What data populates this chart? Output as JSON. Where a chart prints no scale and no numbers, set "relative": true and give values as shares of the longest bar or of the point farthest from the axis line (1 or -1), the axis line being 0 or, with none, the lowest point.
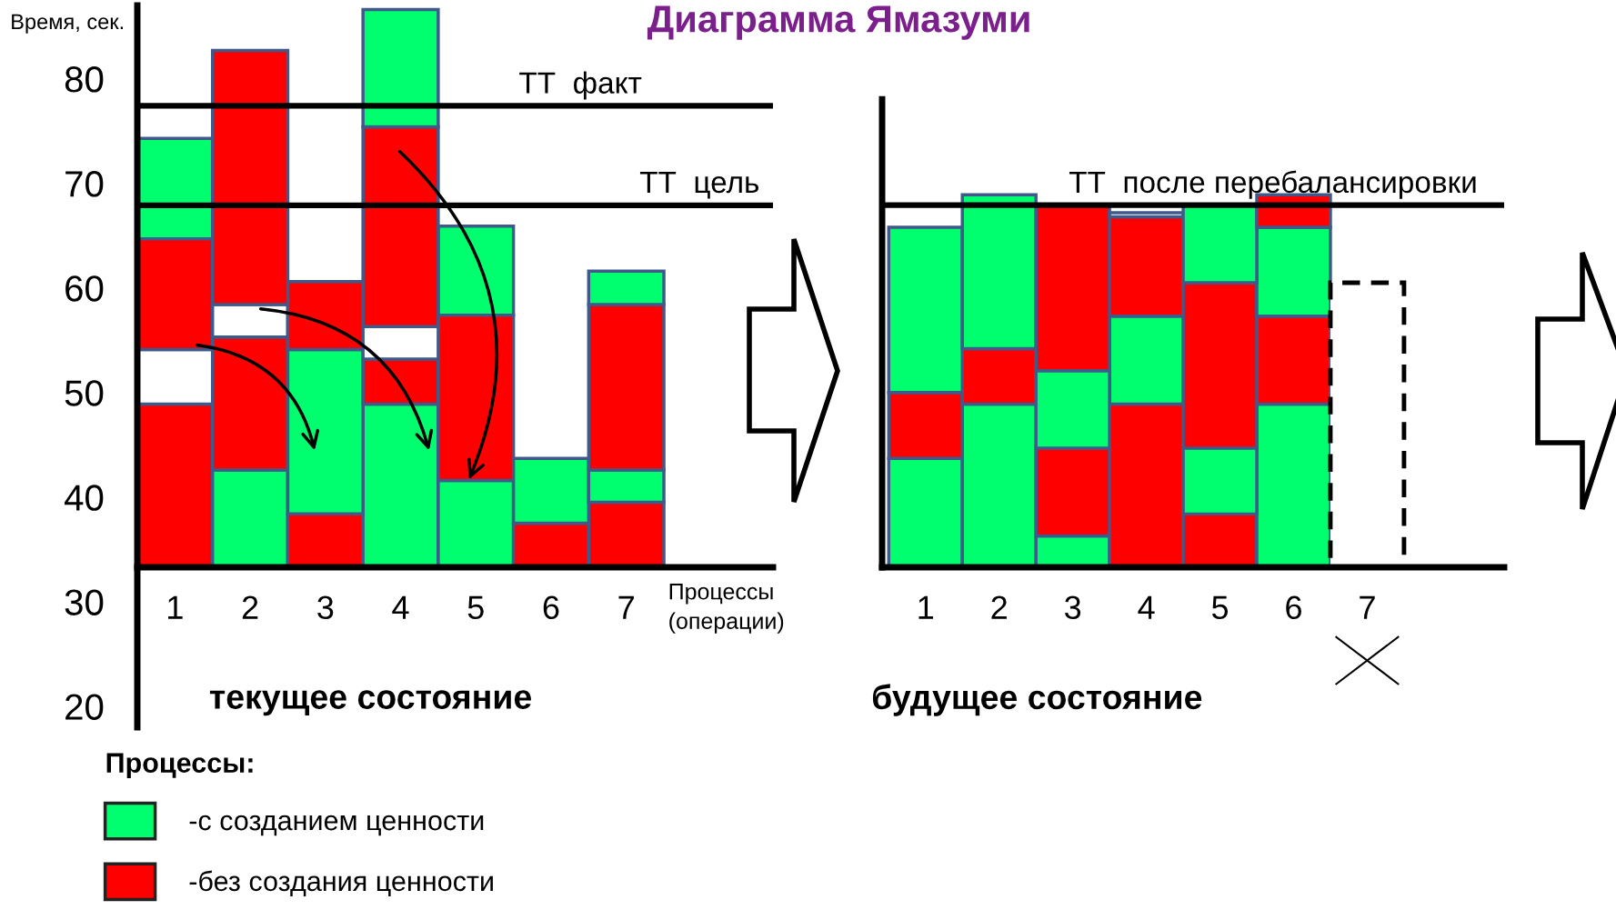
{
  "chart_data": [
    {
      "type": "bar",
      "title": "Диаграмма Ямазуми",
      "ylabel": "Время, сек.",
      "xlabel": "текущее состояние",
      "legend": "bottom left",
      "legend_title": "Процессы:",
      "categories": [
        "1",
        "2",
        "3",
        "4",
        "5",
        "6",
        "7"
      ],
      "series": [
        {
          "name": "-с созданием ценности",
          "color": "#00ff6e",
          "values": [
            null,
            null,
            null,
            null,
            null,
            null,
            null
          ]
        },
        {
          "name": "-без создания ценности",
          "color": "#ff0000",
          "values": [
            null,
            null,
            null,
            null,
            null,
            null,
            null
          ]
        },
        {
          "color": "#ffffff",
          "values": [
            null,
            null,
            null,
            null,
            null,
            null,
            null
          ]
        },
        {
          "base": [
            33.3,
            33.3,
            33.3,
            33.3,
            33.3,
            33.3,
            33.3
          ],
          "values": [
            15.6,
            9.3,
            5.1,
            15.6,
            8.3,
            4.2,
            6.2
          ],
          "colors": [
            "#ff0000",
            "#00ff6e",
            "#ff0000",
            "#00ff6e",
            "#00ff6e",
            "#ff0000",
            "#ff0000"
          ]
        },
        {
          "base": [
            48.9,
            42.6,
            38.4,
            48.9,
            41.6,
            37.5,
            39.5
          ],
          "values": [
            5.2,
            12.7,
            15.7,
            4.3,
            15.8,
            6.2,
            3.1
          ],
          "colors": [
            "#ffffff",
            "#ff0000",
            "#00ff6e",
            "#ff0000",
            "#ff0000",
            "#00ff6e",
            "#00ff6e"
          ]
        },
        {
          "base": [
            54.1,
            55.3,
            54.1,
            53.2,
            57.4,
            null,
            42.6
          ],
          "values": [
            10.6,
            3.1,
            6.5,
            3.1,
            8.5,
            null,
            15.8
          ],
          "colors": [
            "#ff0000",
            "#ffffff",
            "#ff0000",
            "#ffffff",
            "#00ff6e",
            null,
            "#ff0000"
          ]
        },
        {
          "base": [
            64.7,
            58.4,
            null,
            56.3,
            null,
            null,
            58.4
          ],
          "values": [
            9.6,
            24.3,
            null,
            19.1,
            null,
            null,
            3.2
          ],
          "colors": [
            "#00ff6e",
            "#ff0000",
            null,
            "#ff0000",
            null,
            null,
            "#00ff6e"
          ]
        },
        {
          "base": [
            null,
            null,
            null,
            75.4,
            null,
            null,
            null
          ],
          "values": [
            null,
            null,
            null,
            11.2,
            null,
            null,
            null
          ],
          "colors": [
            null,
            null,
            null,
            "#00ff6e",
            null,
            null,
            null
          ]
        }
      ],
      "ylim": [
        18,
        87
      ],
      "yticks": [
        20,
        30,
        40,
        50,
        60,
        70,
        80
      ],
      "ref_lines": [
        {
          "axis": "y",
          "value": 77.4,
          "label": "ТТ  факт",
          "color": "#000000"
        },
        {
          "axis": "y",
          "value": 67.9,
          "label": "ТТ  цель",
          "color": "#000000"
        }
      ],
      "annotations": [
        "Процессы\n(операции)"
      ]
    },
    {
      "type": "bar",
      "xlabel": "будущее состояние",
      "relative": true,
      "stacked": true,
      "categories": [
        "1",
        "2",
        "3",
        "4",
        "5",
        "6",
        "7"
      ],
      "series": [
        {
          "values": [
            0.292,
            0.438,
            0.084,
            0.438,
            0.143,
            0.438,
            null
          ],
          "colors": [
            "#00ff6e",
            "#00ff6e",
            "#00ff6e",
            "#ff0000",
            "#ff0000",
            "#00ff6e",
            null
          ]
        },
        {
          "values": [
            0.177,
            0.149,
            0.236,
            0.236,
            0.177,
            0.236,
            null
          ],
          "colors": [
            "#ff0000",
            "#ff0000",
            "#ff0000",
            "#00ff6e",
            "#00ff6e",
            "#ff0000",
            null
          ]
        },
        {
          "values": [
            0.444,
            0.413,
            0.208,
            0.267,
            0.444,
            0.239,
            null
          ],
          "colors": [
            "#00ff6e",
            "#00ff6e",
            "#00ff6e",
            "#ff0000",
            "#ff0000",
            "#00ff6e",
            null
          ]
        },
        {
          "values": [
            null,
            null,
            0.444,
            0.011,
            0.208,
            0.087,
            null
          ],
          "colors": [
            null,
            null,
            "#ff0000",
            "#ffffff",
            "#00ff6e",
            "#ff0000",
            null
          ]
        },
        {
          "values": [
            null,
            null,
            null,
            null,
            null,
            null,
            0.764
          ],
          "color": "#ffffff",
          "line_style": "dashed"
        }
      ],
      "ref_lines": [
        {
          "axis": "y",
          "value": 0.972,
          "label": "ТТ  после перебалансировки",
          "color": "#000000"
        }
      ]
    }
  ]
}
